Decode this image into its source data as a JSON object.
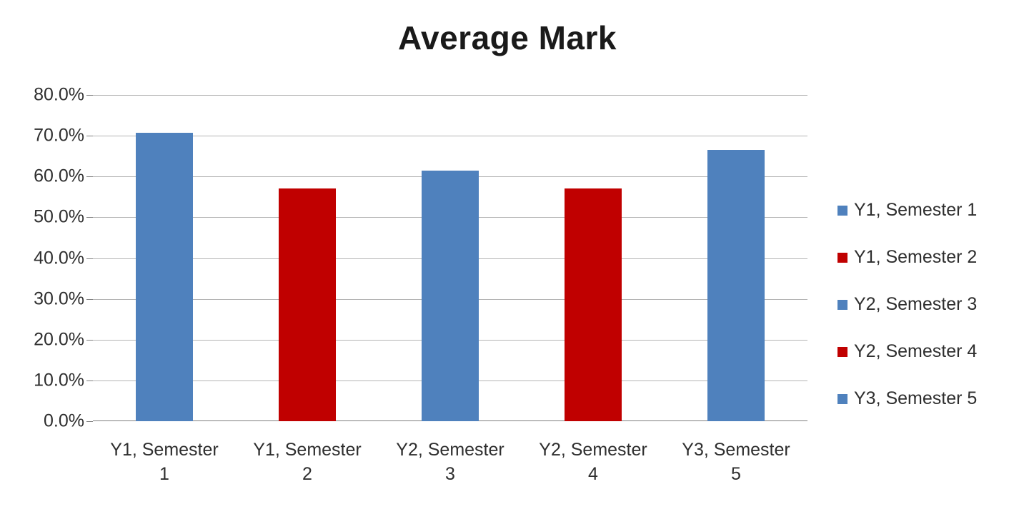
{
  "chart_data": {
    "type": "bar",
    "title": "Average Mark",
    "categories": [
      "Y1, Semester 1",
      "Y1, Semester 2",
      "Y2, Semester 3",
      "Y2, Semester 4",
      "Y3, Semester 5"
    ],
    "values": [
      70.7,
      57.0,
      61.5,
      57.0,
      66.5
    ],
    "unit": "%",
    "xlabel": "",
    "ylabel": "",
    "ylim": [
      0,
      80
    ],
    "ytick_step": 10,
    "ytick_labels": [
      "0.0%",
      "10.0%",
      "20.0%",
      "30.0%",
      "40.0%",
      "50.0%",
      "60.0%",
      "70.0%",
      "80.0%"
    ],
    "xtick_lines": [
      [
        "Y1, Semester",
        "1"
      ],
      [
        "Y1, Semester",
        "2"
      ],
      [
        "Y2, Semester",
        "3"
      ],
      [
        "Y2, Semester",
        "4"
      ],
      [
        "Y3, Semester",
        "5"
      ]
    ],
    "bar_colors": [
      "#4f81bd",
      "#c00000",
      "#4f81bd",
      "#c00000",
      "#4f81bd"
    ],
    "grid": true,
    "legend_position": "right",
    "legend": [
      {
        "label": "Y1, Semester 1",
        "color": "#4f81bd"
      },
      {
        "label": "Y1, Semester 2",
        "color": "#c00000"
      },
      {
        "label": "Y2, Semester 3",
        "color": "#4f81bd"
      },
      {
        "label": "Y2, Semester 4",
        "color": "#c00000"
      },
      {
        "label": "Y3, Semester 5",
        "color": "#4f81bd"
      }
    ],
    "colors": {
      "series_blue": "#4f81bd",
      "series_red": "#c00000",
      "gridline": "#b3b3b3",
      "axis_line": "#7f7f7f",
      "text": "#2e2e2e"
    }
  }
}
